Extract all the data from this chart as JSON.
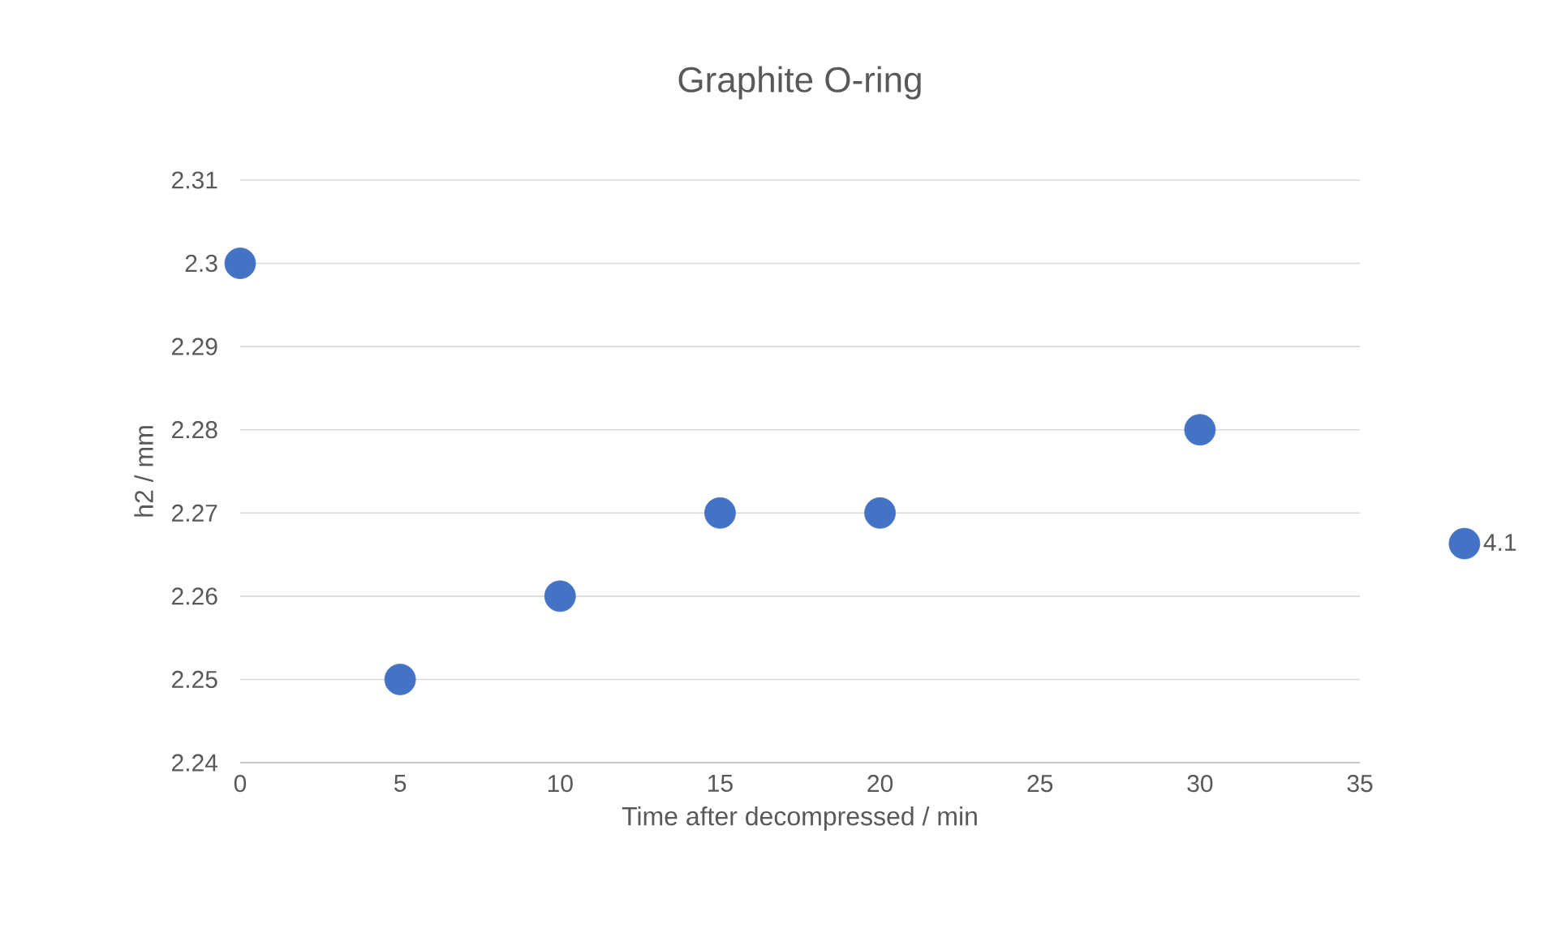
{
  "chart_data": {
    "type": "scatter",
    "title": "Graphite O-ring",
    "xlabel": "Time after decompressed / min",
    "ylabel": "h2 / mm",
    "x": [
      0,
      5,
      10,
      15,
      20,
      30
    ],
    "series": [
      {
        "name": "4.1",
        "color": "#4472c4",
        "values": [
          2.3,
          2.25,
          2.26,
          2.27,
          2.27,
          2.28
        ]
      }
    ],
    "xlim": [
      0,
      35
    ],
    "xticks": [
      0,
      5,
      10,
      15,
      20,
      25,
      30,
      35
    ],
    "ylim": [
      2.24,
      2.31
    ],
    "yticks": [
      2.24,
      2.25,
      2.26,
      2.27,
      2.28,
      2.29,
      2.3,
      2.31
    ],
    "grid": "y",
    "legend": "right",
    "marker": "circle"
  }
}
